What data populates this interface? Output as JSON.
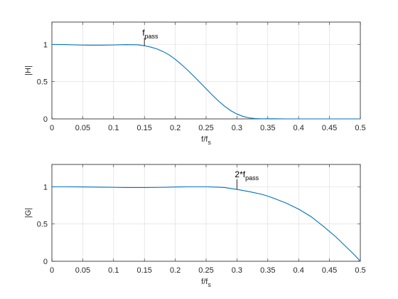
{
  "chart_data": [
    {
      "type": "line",
      "xlabel_main": "f/f",
      "xlabel_sub": "s",
      "ylabel": "|H|",
      "xlim": [
        0,
        0.5
      ],
      "ylim": [
        0,
        1.3
      ],
      "xticks": [
        0,
        0.05,
        0.1,
        0.15,
        0.2,
        0.25,
        0.3,
        0.35,
        0.4,
        0.45,
        0.5
      ],
      "xtick_labels": [
        "0",
        "0.05",
        "0.1",
        "0.15",
        "0.2",
        "0.25",
        "0.3",
        "0.35",
        "0.4",
        "0.45",
        "0.5"
      ],
      "yticks": [
        0,
        0.5,
        1
      ],
      "ytick_labels": [
        "0",
        "0.5",
        "1"
      ],
      "grid": true,
      "color": "#0072bd",
      "series": [
        {
          "x": [
            0,
            0.02,
            0.04,
            0.06,
            0.08,
            0.1,
            0.12,
            0.14,
            0.15,
            0.16,
            0.17,
            0.18,
            0.19,
            0.2,
            0.21,
            0.22,
            0.23,
            0.24,
            0.25,
            0.26,
            0.27,
            0.28,
            0.29,
            0.3,
            0.31,
            0.32,
            0.33,
            0.34,
            0.35,
            0.36,
            0.38,
            0.4,
            0.42,
            0.45,
            0.48,
            0.5
          ],
          "y": [
            1.0,
            0.998,
            0.993,
            0.99,
            0.99,
            0.993,
            0.997,
            0.995,
            0.982,
            0.965,
            0.94,
            0.905,
            0.86,
            0.8,
            0.73,
            0.655,
            0.575,
            0.49,
            0.405,
            0.32,
            0.24,
            0.17,
            0.11,
            0.065,
            0.033,
            0.013,
            0.004,
            0.001,
            0.002,
            0.002,
            0.0,
            0.0,
            0.0,
            0.0,
            0.0,
            0.0
          ]
        }
      ],
      "annotation": {
        "x": 0.15,
        "y_start": 0.98,
        "y_end": 1.09,
        "text_main": "f",
        "text_sub": "pass"
      }
    },
    {
      "type": "line",
      "xlabel_main": "f/f",
      "xlabel_sub": "s",
      "ylabel": "|G|",
      "xlim": [
        0,
        0.5
      ],
      "ylim": [
        0,
        1.3
      ],
      "xticks": [
        0,
        0.05,
        0.1,
        0.15,
        0.2,
        0.25,
        0.3,
        0.35,
        0.4,
        0.45,
        0.5
      ],
      "xtick_labels": [
        "0",
        "0.05",
        "0.1",
        "0.15",
        "0.2",
        "0.25",
        "0.3",
        "0.35",
        "0.4",
        "0.45",
        "0.5"
      ],
      "yticks": [
        0,
        0.5,
        1
      ],
      "ytick_labels": [
        "0",
        "0.5",
        "1"
      ],
      "grid": true,
      "color": "#0072bd",
      "series": [
        {
          "x": [
            0,
            0.02,
            0.05,
            0.08,
            0.1,
            0.12,
            0.15,
            0.18,
            0.2,
            0.22,
            0.25,
            0.27,
            0.28,
            0.3,
            0.32,
            0.34,
            0.35,
            0.36,
            0.38,
            0.4,
            0.42,
            0.44,
            0.46,
            0.48,
            0.49,
            0.5
          ],
          "y": [
            1.0,
            1.0,
            0.998,
            0.995,
            0.993,
            0.99,
            0.99,
            0.993,
            0.997,
            1.0,
            1.0,
            0.995,
            0.99,
            0.965,
            0.935,
            0.9,
            0.875,
            0.845,
            0.78,
            0.7,
            0.6,
            0.47,
            0.33,
            0.17,
            0.09,
            0.0
          ]
        }
      ],
      "annotation": {
        "x": 0.3,
        "y_start": 0.965,
        "y_end": 1.1,
        "text_main": "2*f",
        "text_sub": "pass"
      }
    }
  ]
}
